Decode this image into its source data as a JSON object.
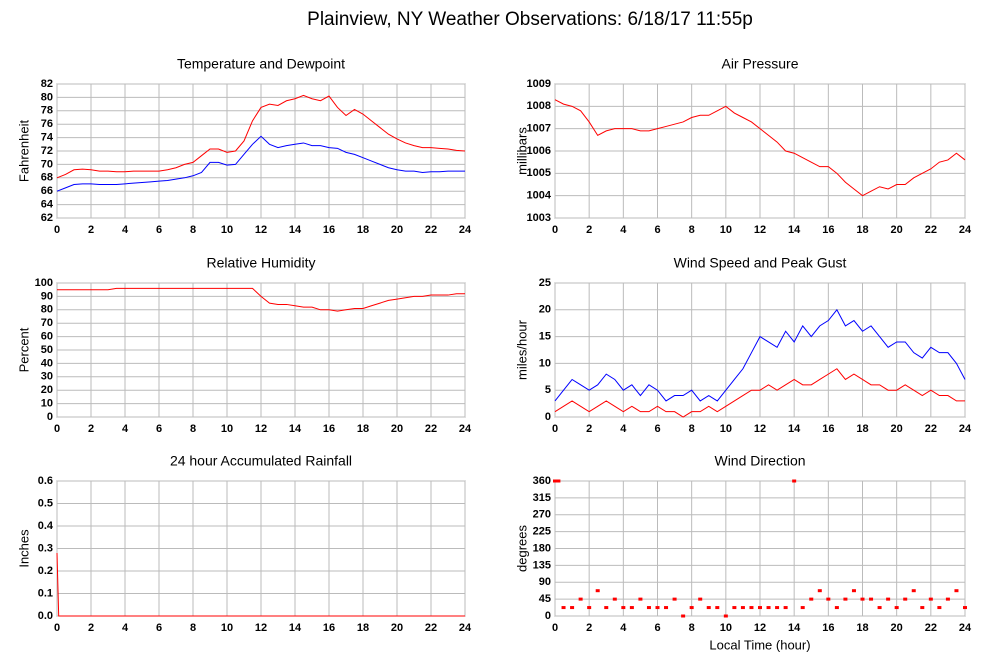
{
  "title": "Plainview, NY Weather Observations: 6/18/17 11:55p",
  "chart_data": [
    {
      "type": "line",
      "title": "Temperature and Dewpoint",
      "ylabel": "Fahrenheit",
      "x": [
        0,
        0.5,
        1,
        1.5,
        2,
        2.5,
        3,
        3.5,
        4,
        4.5,
        5,
        5.5,
        6,
        6.5,
        7,
        7.5,
        8,
        8.5,
        9,
        9.5,
        10,
        10.5,
        11,
        11.5,
        12,
        12.5,
        13,
        13.5,
        14,
        14.5,
        15,
        15.5,
        16,
        16.5,
        17,
        17.5,
        18,
        18.5,
        19,
        19.5,
        20,
        20.5,
        21,
        21.5,
        22,
        22.5,
        23,
        23.5,
        24
      ],
      "series": [
        {
          "color": "#ff0000",
          "values": [
            68,
            68.5,
            69.2,
            69.3,
            69.2,
            69,
            69,
            68.9,
            68.9,
            69,
            69,
            69,
            69,
            69.2,
            69.5,
            70,
            70.3,
            71.3,
            72.3,
            72.3,
            71.8,
            72,
            73.5,
            76.5,
            78.5,
            79,
            78.8,
            79.5,
            79.8,
            80.3,
            79.8,
            79.5,
            80.2,
            78.5,
            77.3,
            78.2,
            77.5,
            76.5,
            75.5,
            74.5,
            73.8,
            73.2,
            72.8,
            72.5,
            72.5,
            72.4,
            72.3,
            72.1,
            72
          ]
        },
        {
          "color": "#0000ff",
          "values": [
            66,
            66.5,
            67,
            67.1,
            67.1,
            67,
            67,
            67,
            67.1,
            67.2,
            67.3,
            67.4,
            67.5,
            67.6,
            67.8,
            68,
            68.3,
            68.8,
            70.3,
            70.3,
            69.9,
            70,
            71.5,
            73,
            74.2,
            73,
            72.5,
            72.8,
            73,
            73.2,
            72.8,
            72.8,
            72.5,
            72.4,
            71.8,
            71.5,
            71,
            70.5,
            70,
            69.5,
            69.2,
            69,
            69,
            68.8,
            68.9,
            68.9,
            69,
            69,
            69
          ]
        }
      ],
      "xlim": [
        0,
        24
      ],
      "xticks": [
        0,
        2,
        4,
        6,
        8,
        10,
        12,
        14,
        16,
        18,
        20,
        22,
        24
      ],
      "ylim": [
        62,
        82
      ],
      "yticks": [
        62,
        64,
        66,
        68,
        70,
        72,
        74,
        76,
        78,
        80,
        82
      ],
      "grid": true
    },
    {
      "type": "line",
      "title": "Air Pressure",
      "ylabel": "millibars",
      "x": [
        0,
        0.5,
        1,
        1.5,
        2,
        2.5,
        3,
        3.5,
        4,
        4.5,
        5,
        5.5,
        6,
        6.5,
        7,
        7.5,
        8,
        8.5,
        9,
        9.5,
        10,
        10.5,
        11,
        11.5,
        12,
        12.5,
        13,
        13.5,
        14,
        14.5,
        15,
        15.5,
        16,
        16.5,
        17,
        17.5,
        18,
        18.5,
        19,
        19.5,
        20,
        20.5,
        21,
        21.5,
        22,
        22.5,
        23,
        23.5,
        24
      ],
      "series": [
        {
          "color": "#ff0000",
          "values": [
            1008.3,
            1008.1,
            1008,
            1007.8,
            1007.3,
            1006.7,
            1006.9,
            1007,
            1007,
            1007,
            1006.9,
            1006.9,
            1007,
            1007.1,
            1007.2,
            1007.3,
            1007.5,
            1007.6,
            1007.6,
            1007.8,
            1008,
            1007.7,
            1007.5,
            1007.3,
            1007,
            1006.7,
            1006.4,
            1006,
            1005.9,
            1005.7,
            1005.5,
            1005.3,
            1005.3,
            1005,
            1004.6,
            1004.3,
            1004,
            1004.2,
            1004.4,
            1004.3,
            1004.5,
            1004.5,
            1004.8,
            1005,
            1005.2,
            1005.5,
            1005.6,
            1005.9,
            1005.6
          ]
        }
      ],
      "xlim": [
        0,
        24
      ],
      "xticks": [
        0,
        2,
        4,
        6,
        8,
        10,
        12,
        14,
        16,
        18,
        20,
        22,
        24
      ],
      "ylim": [
        1003,
        1009
      ],
      "yticks": [
        1003,
        1004,
        1005,
        1006,
        1007,
        1008,
        1009
      ],
      "grid": true
    },
    {
      "type": "line",
      "title": "Relative Humidity",
      "ylabel": "Percent",
      "x": [
        0,
        0.5,
        1,
        1.5,
        2,
        2.5,
        3,
        3.5,
        4,
        4.5,
        5,
        5.5,
        6,
        6.5,
        7,
        7.5,
        8,
        8.5,
        9,
        9.5,
        10,
        10.5,
        11,
        11.5,
        12,
        12.5,
        13,
        13.5,
        14,
        14.5,
        15,
        15.5,
        16,
        16.5,
        17,
        17.5,
        18,
        18.5,
        19,
        19.5,
        20,
        20.5,
        21,
        21.5,
        22,
        22.5,
        23,
        23.5,
        24
      ],
      "series": [
        {
          "color": "#ff0000",
          "values": [
            95,
            95,
            95,
            95,
            95,
            95,
            95,
            96,
            96,
            96,
            96,
            96,
            96,
            96,
            96,
            96,
            96,
            96,
            96,
            96,
            96,
            96,
            96,
            96,
            90,
            85,
            84,
            84,
            83,
            82,
            82,
            80,
            80,
            79,
            80,
            81,
            81,
            83,
            85,
            87,
            88,
            89,
            90,
            90,
            91,
            91,
            91,
            92,
            92
          ]
        }
      ],
      "xlim": [
        0,
        24
      ],
      "xticks": [
        0,
        2,
        4,
        6,
        8,
        10,
        12,
        14,
        16,
        18,
        20,
        22,
        24
      ],
      "ylim": [
        0,
        100
      ],
      "yticks": [
        0,
        10,
        20,
        30,
        40,
        50,
        60,
        70,
        80,
        90,
        100
      ],
      "grid": true
    },
    {
      "type": "line",
      "title": "Wind Speed and Peak Gust",
      "ylabel": "miles/hour",
      "x": [
        0,
        0.5,
        1,
        1.5,
        2,
        2.5,
        3,
        3.5,
        4,
        4.5,
        5,
        5.5,
        6,
        6.5,
        7,
        7.5,
        8,
        8.5,
        9,
        9.5,
        10,
        10.5,
        11,
        11.5,
        12,
        12.5,
        13,
        13.5,
        14,
        14.5,
        15,
        15.5,
        16,
        16.5,
        17,
        17.5,
        18,
        18.5,
        19,
        19.5,
        20,
        20.5,
        21,
        21.5,
        22,
        22.5,
        23,
        23.5,
        24
      ],
      "series": [
        {
          "color": "#0000ff",
          "values": [
            3,
            5,
            7,
            6,
            5,
            6,
            8,
            7,
            5,
            6,
            4,
            6,
            5,
            3,
            4,
            4,
            5,
            3,
            4,
            3,
            5,
            7,
            9,
            12,
            15,
            14,
            13,
            16,
            14,
            17,
            15,
            17,
            18,
            20,
            17,
            18,
            16,
            17,
            15,
            13,
            14,
            14,
            12,
            11,
            13,
            12,
            12,
            10,
            7
          ]
        },
        {
          "color": "#ff0000",
          "values": [
            1,
            2,
            3,
            2,
            1,
            2,
            3,
            2,
            1,
            2,
            1,
            1,
            2,
            1,
            1,
            0,
            1,
            1,
            2,
            1,
            2,
            3,
            4,
            5,
            5,
            6,
            5,
            6,
            7,
            6,
            6,
            7,
            8,
            9,
            7,
            8,
            7,
            6,
            6,
            5,
            5,
            6,
            5,
            4,
            5,
            4,
            4,
            3,
            3
          ]
        }
      ],
      "xlim": [
        0,
        24
      ],
      "xticks": [
        0,
        2,
        4,
        6,
        8,
        10,
        12,
        14,
        16,
        18,
        20,
        22,
        24
      ],
      "ylim": [
        0,
        25
      ],
      "yticks": [
        0,
        5,
        10,
        15,
        20,
        25
      ],
      "grid": true
    },
    {
      "type": "line",
      "title": "24 hour Accumulated Rainfall",
      "ylabel": "Inches",
      "x": [
        0,
        0.1,
        24
      ],
      "series": [
        {
          "color": "#ff0000",
          "values": [
            0.28,
            0,
            0
          ]
        }
      ],
      "xlim": [
        0,
        24
      ],
      "xticks": [
        0,
        2,
        4,
        6,
        8,
        10,
        12,
        14,
        16,
        18,
        20,
        22,
        24
      ],
      "ylim": [
        0,
        0.6
      ],
      "yticks": [
        {
          "value": 0,
          "label": "0.0"
        },
        0.1,
        0.2,
        0.3,
        0.4,
        0.5,
        0.6
      ],
      "grid": true
    },
    {
      "type": "scatter",
      "title": "Wind Direction",
      "ylabel": "degrees",
      "xlabel": "Local Time (hour)",
      "x": [
        0,
        0.2,
        0.5,
        1,
        1.5,
        2,
        2.5,
        3,
        3.5,
        4,
        4.5,
        5,
        5.5,
        6,
        6.5,
        7,
        7.5,
        8,
        8.5,
        9,
        9.5,
        10,
        10.5,
        11,
        11.5,
        12,
        12.5,
        13,
        13.5,
        14,
        14.5,
        15,
        15.5,
        16,
        16.5,
        17,
        17.5,
        18,
        18.5,
        19,
        19.5,
        20,
        20.5,
        21,
        21.5,
        22,
        22.5,
        23,
        23.5,
        24
      ],
      "series": [
        {
          "color": "#ff0000",
          "values": [
            360,
            360,
            22.5,
            22.5,
            45,
            22.5,
            67.5,
            22.5,
            45,
            22.5,
            22.5,
            45,
            22.5,
            22.5,
            22.5,
            45,
            0,
            22.5,
            45,
            22.5,
            22.5,
            0,
            22.5,
            22.5,
            22.5,
            22.5,
            22.5,
            22.5,
            22.5,
            360,
            22.5,
            45,
            67.5,
            45,
            22.5,
            45,
            67.5,
            45,
            45,
            22.5,
            45,
            22.5,
            45,
            67.5,
            22.5,
            45,
            22.5,
            45,
            67.5,
            22.5
          ]
        }
      ],
      "xlim": [
        0,
        24
      ],
      "xticks": [
        0,
        2,
        4,
        6,
        8,
        10,
        12,
        14,
        16,
        18,
        20,
        22,
        24
      ],
      "ylim": [
        0,
        360
      ],
      "yticks": [
        0,
        45,
        90,
        135,
        180,
        225,
        270,
        315,
        360
      ],
      "grid": true
    }
  ]
}
